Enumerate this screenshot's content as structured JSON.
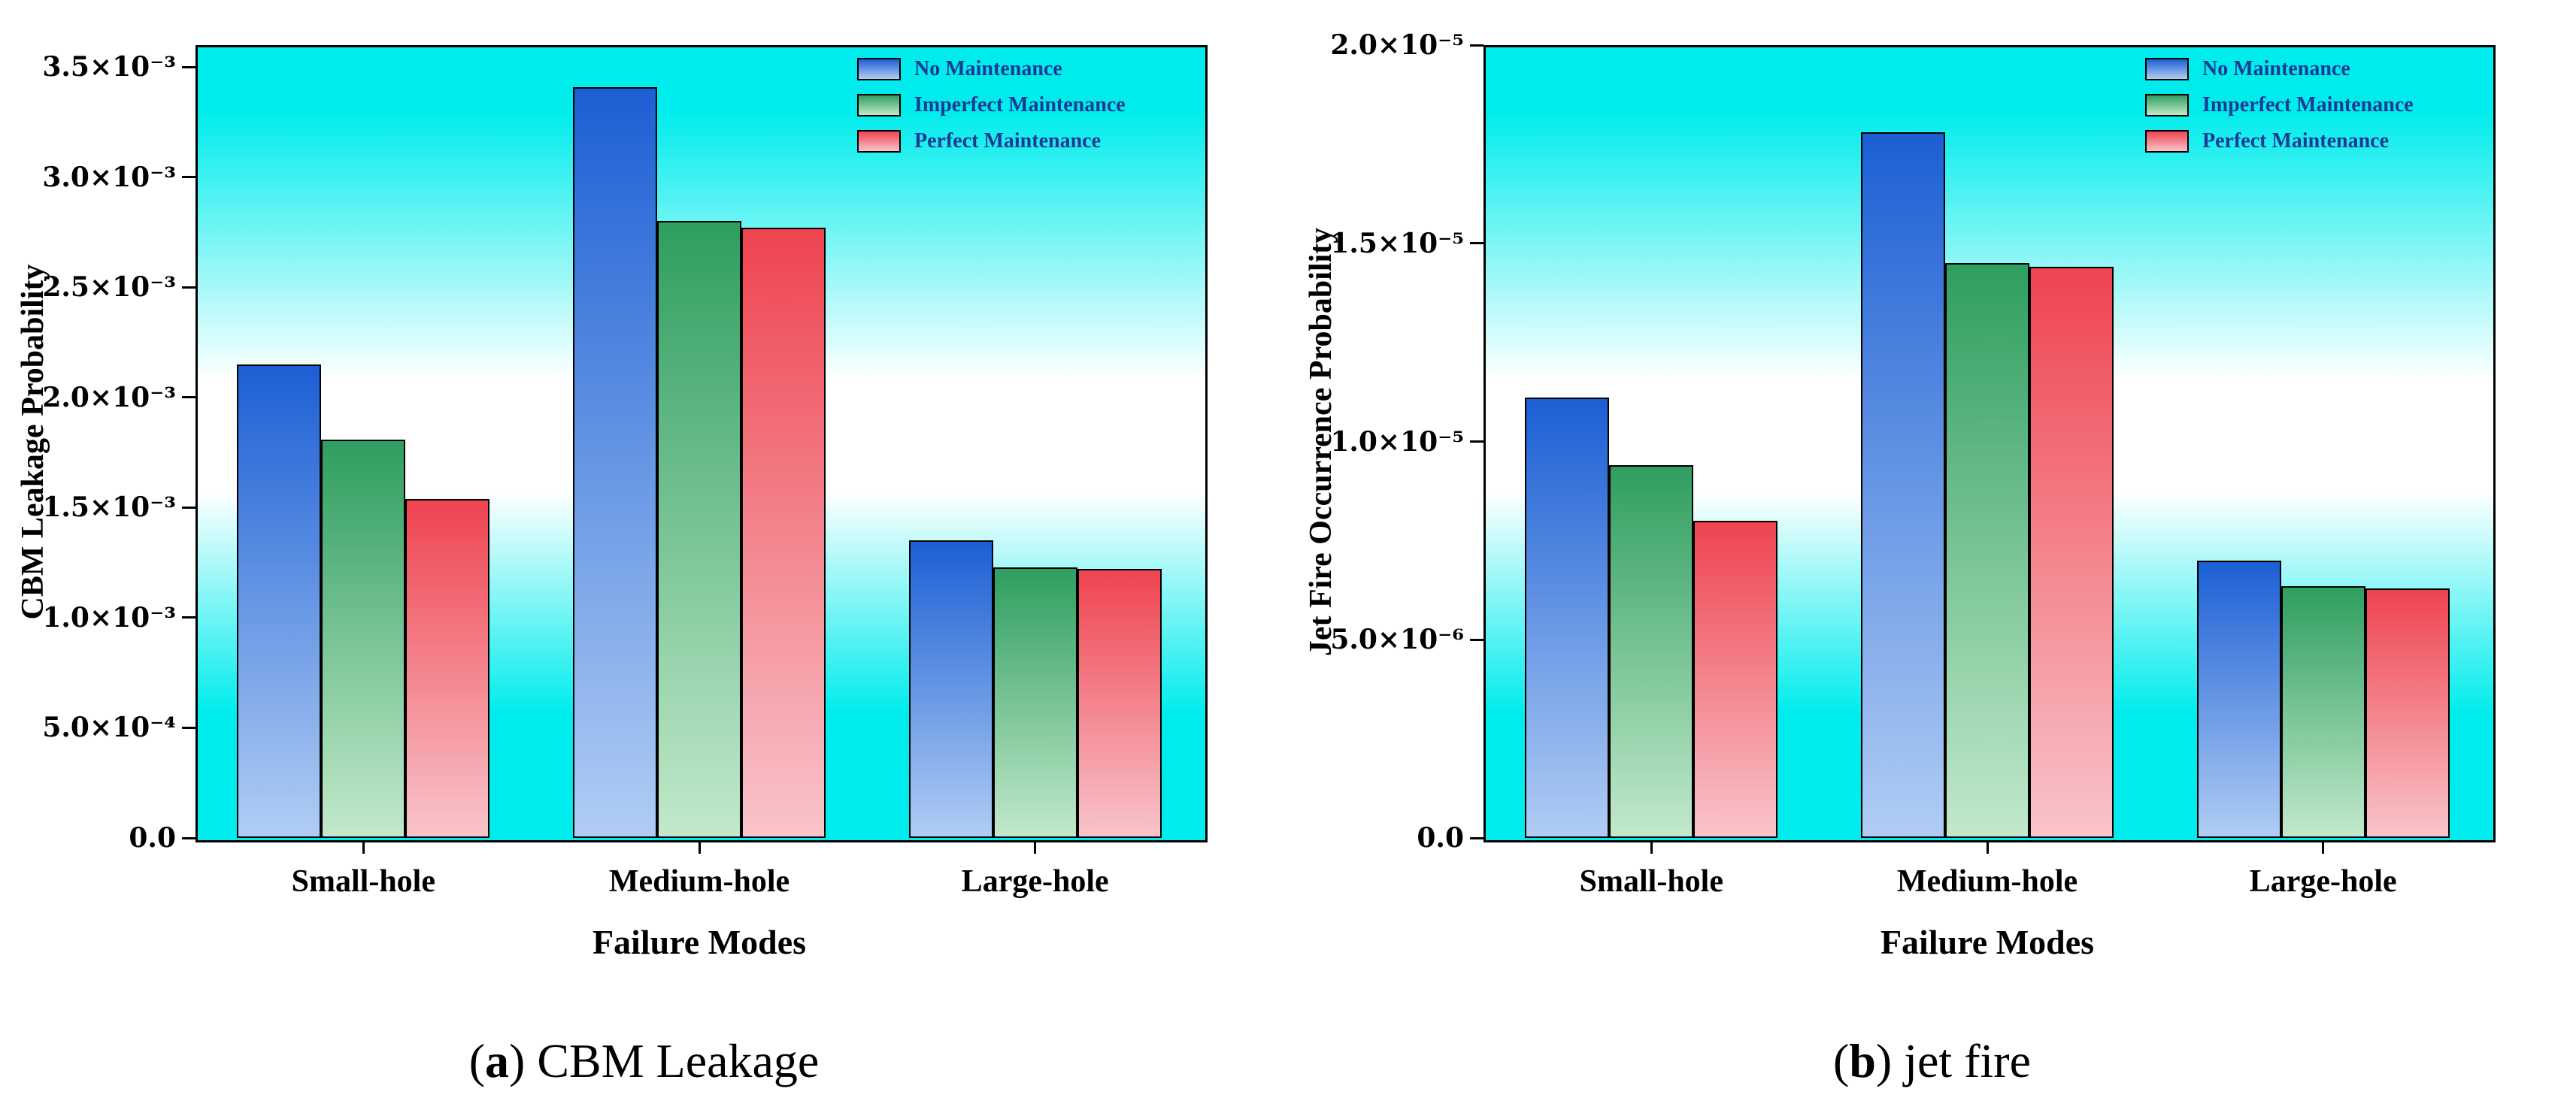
{
  "colors": {
    "plot_background_cyan": "#00ecec",
    "legend_text": "#1b3a94",
    "axis": "#000000"
  },
  "legend": {
    "entries": [
      "No Maintenance",
      "Imperfect Maintenance",
      "Perfect Maintenance"
    ]
  },
  "chart_data": [
    {
      "id": "a",
      "type": "bar",
      "caption_prefix": "(",
      "caption_letter": "a",
      "caption_suffix": ") CBM Leakage",
      "xlabel": "Failure Modes",
      "ylabel": "CBM Leakage Probability",
      "categories": [
        "Small-hole",
        "Medium-hole",
        "Large-hole"
      ],
      "series": [
        {
          "name": "No Maintenance",
          "color_top": "#1c5fd4",
          "color_bottom": "#b0cdf4",
          "values": [
            0.00215,
            0.00341,
            0.00135
          ]
        },
        {
          "name": "Imperfect Maintenance",
          "color_top": "#2f9e60",
          "color_bottom": "#c2e9cb",
          "values": [
            0.00181,
            0.0028,
            0.00123
          ]
        },
        {
          "name": "Perfect Maintenance",
          "color_top": "#ee4450",
          "color_bottom": "#f9c4cb",
          "values": [
            0.00154,
            0.00277,
            0.00122
          ]
        }
      ],
      "ylim": [
        0,
        0.0036
      ],
      "yticks": [
        {
          "value": 0,
          "label": "0.0"
        },
        {
          "value": 0.0005,
          "label": "5.0×10⁻⁴"
        },
        {
          "value": 0.001,
          "label": "1.0×10⁻³"
        },
        {
          "value": 0.0015,
          "label": "1.5×10⁻³"
        },
        {
          "value": 0.002,
          "label": "2.0×10⁻³"
        },
        {
          "value": 0.0025,
          "label": "2.5×10⁻³"
        },
        {
          "value": 0.003,
          "label": "3.0×10⁻³"
        },
        {
          "value": 0.0035,
          "label": "3.5×10⁻³"
        }
      ],
      "legend_position": "top-right",
      "grid": false
    },
    {
      "id": "b",
      "type": "bar",
      "caption_prefix": "(",
      "caption_letter": "b",
      "caption_suffix": ") jet fire",
      "xlabel": "Failure Modes",
      "ylabel": "Jet Fire Occurrence Probability",
      "categories": [
        "Small-hole",
        "Medium-hole",
        "Large-hole"
      ],
      "series": [
        {
          "name": "No Maintenance",
          "color_top": "#1c5fd4",
          "color_bottom": "#b0cdf4",
          "values": [
            1.11e-05,
            1.78e-05,
            7e-06
          ]
        },
        {
          "name": "Imperfect Maintenance",
          "color_top": "#2f9e60",
          "color_bottom": "#c2e9cb",
          "values": [
            9.4e-06,
            1.45e-05,
            6.35e-06
          ]
        },
        {
          "name": "Perfect Maintenance",
          "color_top": "#ee4450",
          "color_bottom": "#f9c4cb",
          "values": [
            8e-06,
            1.44e-05,
            6.3e-06
          ]
        }
      ],
      "ylim": [
        0,
        2e-05
      ],
      "yticks": [
        {
          "value": 0,
          "label": "0.0"
        },
        {
          "value": 5e-06,
          "label": "5.0×10⁻⁶"
        },
        {
          "value": 1e-05,
          "label": "1.0×10⁻⁵"
        },
        {
          "value": 1.5e-05,
          "label": "1.5×10⁻⁵"
        },
        {
          "value": 2e-05,
          "label": "2.0×10⁻⁵"
        }
      ],
      "legend_position": "top-right",
      "grid": false
    }
  ]
}
